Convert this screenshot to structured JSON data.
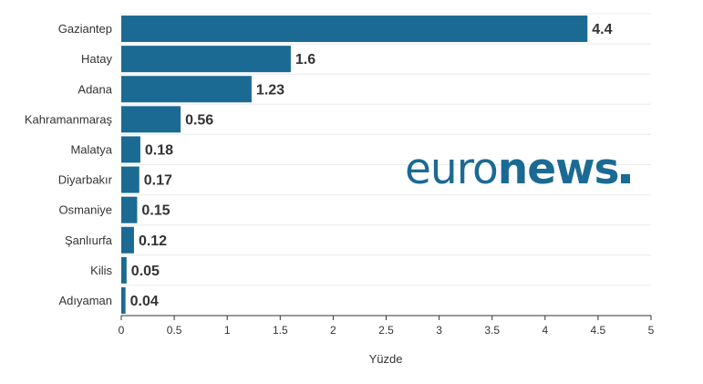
{
  "chart_data": {
    "type": "bar",
    "orientation": "horizontal",
    "categories": [
      "Gaziantep",
      "Hatay",
      "Adana",
      "Kahramanmaraş",
      "Malatya",
      "Diyarbakır",
      "Osmaniye",
      "Şanlıurfa",
      "Kilis",
      "Adıyaman"
    ],
    "values": [
      4.4,
      1.6,
      1.23,
      0.56,
      0.18,
      0.17,
      0.15,
      0.12,
      0.05,
      0.04
    ],
    "value_labels": [
      "4.4",
      "1.6",
      "1.23",
      "0.56",
      "0.18",
      "0.17",
      "0.15",
      "0.12",
      "0.05",
      "0.04"
    ],
    "xticks": [
      "0",
      "0.5",
      "1",
      "1.5",
      "2",
      "2.5",
      "3",
      "3.5",
      "4",
      "4.5",
      "5"
    ],
    "xlim": [
      0,
      5
    ],
    "xlabel": "Yüzde",
    "ylabel": "",
    "title": "",
    "grid": true,
    "bar_color": "#1b6a93"
  },
  "logo": {
    "light": "euro",
    "bold": "news",
    "color": "#1b6a93"
  }
}
